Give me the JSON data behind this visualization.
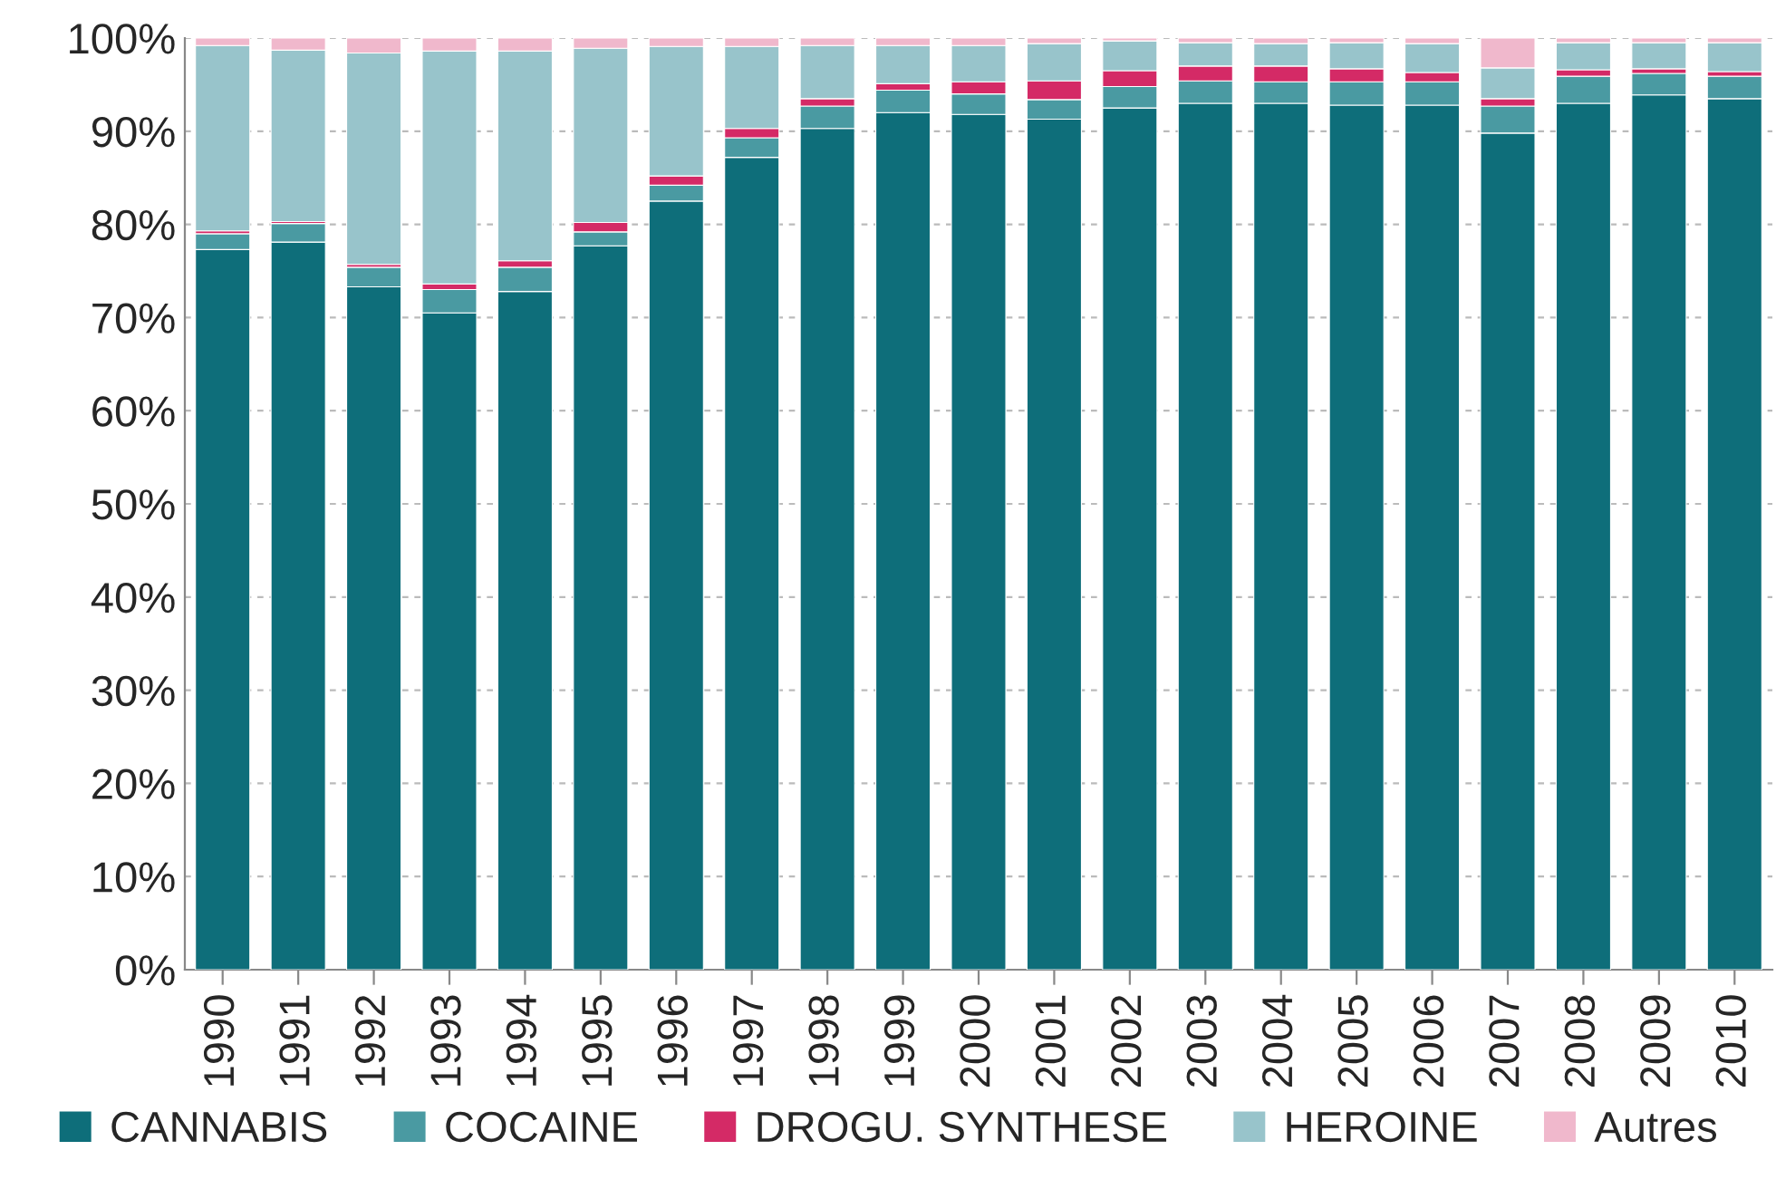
{
  "chart_data": {
    "type": "bar",
    "stacked": true,
    "categories": [
      "1990",
      "1991",
      "1992",
      "1993",
      "1994",
      "1995",
      "1996",
      "1997",
      "1998",
      "1999",
      "2000",
      "2001",
      "2002",
      "2003",
      "2004",
      "2005",
      "2006",
      "2007",
      "2008",
      "2009",
      "2010"
    ],
    "series": [
      {
        "name": "CANNABIS",
        "color": "#0e6e7a",
        "values": [
          77.3,
          78.1,
          73.3,
          70.5,
          72.8,
          77.7,
          82.5,
          87.2,
          90.3,
          92.0,
          91.8,
          91.3,
          92.5,
          93.0,
          93.0,
          92.8,
          92.8,
          89.8,
          93.0,
          93.9,
          93.5
        ]
      },
      {
        "name": "COCAINE",
        "color": "#4a9aa2",
        "values": [
          1.7,
          2.0,
          2.1,
          2.5,
          2.6,
          1.5,
          1.7,
          2.1,
          2.4,
          2.4,
          2.2,
          2.1,
          2.3,
          2.4,
          2.3,
          2.5,
          2.5,
          2.9,
          2.9,
          2.3,
          2.4
        ]
      },
      {
        "name": "DROGU. SYNTHESE",
        "color": "#d42a66",
        "values": [
          0.3,
          0.2,
          0.3,
          0.6,
          0.7,
          1.0,
          1.0,
          1.0,
          0.8,
          0.7,
          1.3,
          2.0,
          1.7,
          1.6,
          1.7,
          1.4,
          1.0,
          0.8,
          0.7,
          0.5,
          0.5
        ]
      },
      {
        "name": "HEROINE",
        "color": "#98c4cb",
        "values": [
          19.9,
          18.4,
          22.7,
          25.0,
          22.5,
          18.7,
          13.9,
          8.8,
          5.7,
          4.1,
          3.9,
          4.0,
          3.2,
          2.5,
          2.4,
          2.8,
          3.1,
          3.3,
          2.9,
          2.8,
          3.1
        ]
      },
      {
        "name": "Autres",
        "color": "#f0b8cc",
        "values": [
          0.8,
          1.3,
          1.6,
          1.4,
          1.4,
          1.1,
          0.9,
          0.9,
          0.8,
          0.8,
          0.8,
          0.6,
          0.3,
          0.5,
          0.6,
          0.5,
          0.6,
          3.2,
          0.5,
          0.5,
          0.5
        ]
      }
    ],
    "ylim": [
      0,
      100
    ],
    "yticks": [
      {
        "value": 0,
        "label": "0%"
      },
      {
        "value": 10,
        "label": "10%"
      },
      {
        "value": 20,
        "label": "20%"
      },
      {
        "value": 30,
        "label": "30%"
      },
      {
        "value": 40,
        "label": "40%"
      },
      {
        "value": 50,
        "label": "50%"
      },
      {
        "value": 60,
        "label": "60%"
      },
      {
        "value": 70,
        "label": "70%"
      },
      {
        "value": 80,
        "label": "80%"
      },
      {
        "value": 90,
        "label": "90%"
      },
      {
        "value": 100,
        "label": "100%"
      }
    ],
    "grid": "y",
    "legend": "bottom"
  }
}
